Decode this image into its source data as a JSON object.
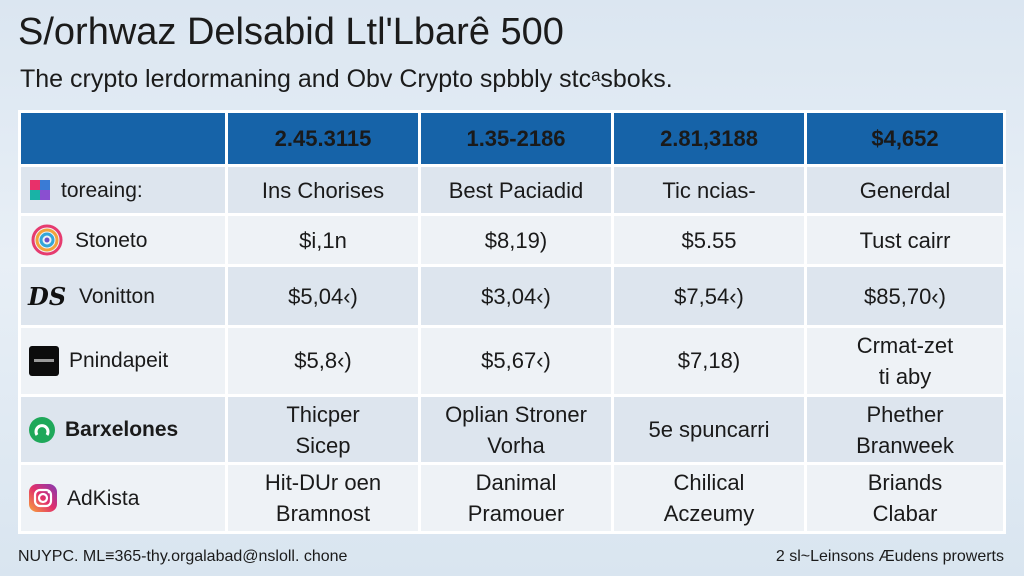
{
  "title": "S/orhwaz Delsabid Ltl'Lbarê  500",
  "subtitle": "The crypto lerdormaning and Obv Crypto spbbly stcᵃsboks.",
  "table": {
    "header": [
      "",
      "2.45.3115",
      "1.35-2186",
      "2.81,3188",
      "$4,652"
    ],
    "rows": [
      {
        "label": "toreaing:",
        "logo": "colorful-square-logo-icon",
        "cells": [
          [
            "Ins Chorises"
          ],
          [
            "Best Paciadid"
          ],
          [
            "Tic ncias-"
          ],
          [
            "Generdal"
          ]
        ]
      },
      {
        "label": "Stoneto",
        "logo": "rainbow-swirl-logo-icon",
        "cells": [
          [
            "$i,1n"
          ],
          [
            "$8,19)"
          ],
          [
            "$5.55"
          ],
          [
            "Tust cairr"
          ]
        ]
      },
      {
        "label": "Vonitton",
        "logo": "ds-monogram-logo-icon",
        "cells": [
          [
            "$5,04‹)"
          ],
          [
            "$3,04‹)"
          ],
          [
            "$7,54‹)"
          ],
          [
            "$85,70‹)"
          ]
        ]
      },
      {
        "label": "Pnindapeit",
        "logo": "black-square-logo-icon",
        "cells": [
          [
            "$5,8‹)"
          ],
          [
            "$5,67‹)"
          ],
          [
            "$7,18)"
          ],
          [
            "Crmat-zet",
            "ti aby"
          ]
        ]
      },
      {
        "label": "Barxelones",
        "logo": "green-circle-logo-icon",
        "cells": [
          [
            "Thicper",
            "Sicep"
          ],
          [
            "Oplian Stroner",
            "Vorha"
          ],
          [
            "5e spuncarri"
          ],
          [
            "Phether",
            "Branweek"
          ]
        ]
      },
      {
        "label": "AdKista",
        "logo": "instagram-logo-icon",
        "cells": [
          [
            "Hit-DUr oen",
            "Bramnost"
          ],
          [
            "Danimal",
            "Pramouer"
          ],
          [
            "Chilical",
            "Aczeumy"
          ],
          [
            "Briands",
            "Clabar"
          ]
        ]
      }
    ]
  },
  "footer": {
    "left": "NUYPC. ML≡365-thy.orgalabad@nsloll. chone",
    "right": "2 sl~Leinsons Æudens prowerts"
  },
  "colors": {
    "header_bg": "#1663a8",
    "row_dark": "#dde5ee",
    "row_light": "#eef2f6"
  }
}
